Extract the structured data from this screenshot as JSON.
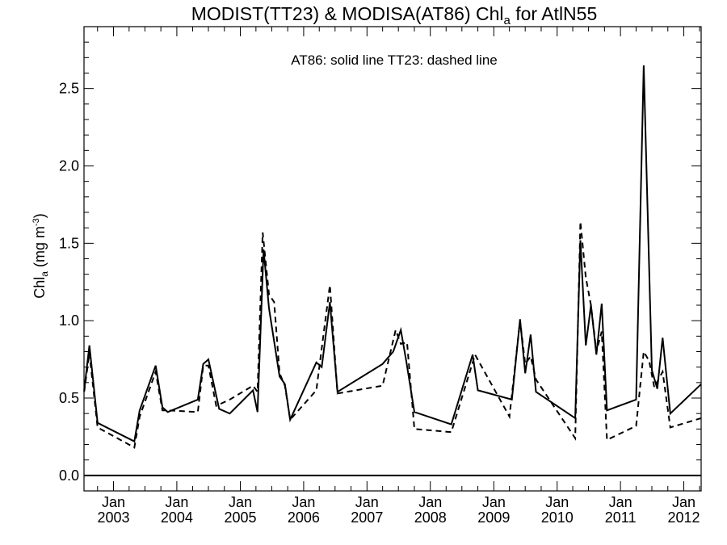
{
  "chart_data": {
    "type": "line",
    "title": "MODIST(TT23) & MODISA(AT86)  Chl",
    "title_sub": "a",
    "title_suffix": " for AtlN55",
    "ylabel": "Chl",
    "ylabel_sub": "a",
    "ylabel_units": " (mg m",
    "ylabel_sup": "-3",
    "ylabel_close": ")",
    "annotation": "AT86: solid line   TT23: dashed line",
    "xlim": [
      "2002-07-15",
      "2012-04-10"
    ],
    "ylim": [
      -0.1,
      2.9
    ],
    "y_ticks": [
      0.0,
      0.5,
      1.0,
      1.5,
      2.0,
      2.5
    ],
    "y_tick_labels": [
      "0.0",
      "0.5",
      "1.0",
      "1.5",
      "2.0",
      "2.5"
    ],
    "x_ticks": [
      "2003-01-01",
      "2004-01-01",
      "2005-01-01",
      "2006-01-01",
      "2007-01-01",
      "2008-01-01",
      "2009-01-01",
      "2010-01-01",
      "2011-01-01",
      "2012-01-01"
    ],
    "x_tick_month_label": "Jan",
    "x_tick_year_labels": [
      "2003",
      "2004",
      "2005",
      "2006",
      "2007",
      "2008",
      "2009",
      "2010",
      "2011",
      "2012"
    ],
    "zero_line": 0.0,
    "series": [
      {
        "name": "AT86",
        "style": "solid",
        "points": [
          [
            "2002-07-16",
            0.55
          ],
          [
            "2002-08-15",
            0.84
          ],
          [
            "2002-10-01",
            0.34
          ],
          [
            "2003-05-01",
            0.22
          ],
          [
            "2003-06-01",
            0.42
          ],
          [
            "2003-09-01",
            0.71
          ],
          [
            "2003-10-10",
            0.44
          ],
          [
            "2003-11-10",
            0.41
          ],
          [
            "2004-05-01",
            0.49
          ],
          [
            "2004-06-01",
            0.72
          ],
          [
            "2004-07-01",
            0.75
          ],
          [
            "2004-09-01",
            0.43
          ],
          [
            "2004-11-01",
            0.4
          ],
          [
            "2005-03-15",
            0.55
          ],
          [
            "2005-04-10",
            0.41
          ],
          [
            "2005-05-15",
            1.46
          ],
          [
            "2005-06-15",
            1.08
          ],
          [
            "2005-08-15",
            0.64
          ],
          [
            "2005-09-15",
            0.59
          ],
          [
            "2005-10-15",
            0.36
          ],
          [
            "2006-03-15",
            0.73
          ],
          [
            "2006-04-15",
            0.7
          ],
          [
            "2006-06-01",
            1.12
          ],
          [
            "2006-07-15",
            0.54
          ],
          [
            "2007-04-01",
            0.72
          ],
          [
            "2007-06-01",
            0.8
          ],
          [
            "2007-07-15",
            0.94
          ],
          [
            "2007-08-15",
            0.74
          ],
          [
            "2007-10-01",
            0.41
          ],
          [
            "2008-05-01",
            0.33
          ],
          [
            "2008-09-01",
            0.78
          ],
          [
            "2008-10-01",
            0.55
          ],
          [
            "2009-04-15",
            0.49
          ],
          [
            "2009-06-01",
            1.01
          ],
          [
            "2009-07-01",
            0.66
          ],
          [
            "2009-08-01",
            0.91
          ],
          [
            "2009-09-01",
            0.54
          ],
          [
            "2010-04-15",
            0.37
          ],
          [
            "2010-05-15",
            1.52
          ],
          [
            "2010-06-15",
            0.84
          ],
          [
            "2010-07-15",
            1.1
          ],
          [
            "2010-08-15",
            0.78
          ],
          [
            "2010-09-15",
            1.11
          ],
          [
            "2010-10-15",
            0.42
          ],
          [
            "2011-04-01",
            0.49
          ],
          [
            "2011-05-15",
            2.65
          ],
          [
            "2011-07-01",
            0.68
          ],
          [
            "2011-08-01",
            0.56
          ],
          [
            "2011-09-01",
            0.89
          ],
          [
            "2011-10-15",
            0.4
          ],
          [
            "2012-04-10",
            0.59
          ]
        ]
      },
      {
        "name": "TT23",
        "style": "dashed",
        "points": [
          [
            "2002-07-16",
            0.54
          ],
          [
            "2002-08-15",
            0.79
          ],
          [
            "2002-10-01",
            0.31
          ],
          [
            "2003-05-01",
            0.18
          ],
          [
            "2003-06-01",
            0.38
          ],
          [
            "2003-09-01",
            0.67
          ],
          [
            "2003-10-10",
            0.42
          ],
          [
            "2003-11-10",
            0.42
          ],
          [
            "2004-05-01",
            0.41
          ],
          [
            "2004-06-01",
            0.71
          ],
          [
            "2004-07-01",
            0.71
          ],
          [
            "2004-08-15",
            0.45
          ],
          [
            "2004-11-01",
            0.49
          ],
          [
            "2005-03-15",
            0.58
          ],
          [
            "2005-04-10",
            0.54
          ],
          [
            "2005-05-10",
            1.57
          ],
          [
            "2005-06-15",
            1.17
          ],
          [
            "2005-07-15",
            1.12
          ],
          [
            "2005-08-15",
            0.66
          ],
          [
            "2005-09-15",
            0.58
          ],
          [
            "2005-10-15",
            0.36
          ],
          [
            "2006-03-15",
            0.55
          ],
          [
            "2006-06-01",
            1.23
          ],
          [
            "2006-07-15",
            0.53
          ],
          [
            "2007-04-01",
            0.58
          ],
          [
            "2007-06-15",
            0.94
          ],
          [
            "2007-07-15",
            0.85
          ],
          [
            "2007-08-20",
            0.86
          ],
          [
            "2007-10-01",
            0.3
          ],
          [
            "2008-05-01",
            0.28
          ],
          [
            "2008-09-15",
            0.78
          ],
          [
            "2009-04-01",
            0.38
          ],
          [
            "2009-06-01",
            1.0
          ],
          [
            "2009-07-01",
            0.72
          ],
          [
            "2009-08-01",
            0.77
          ],
          [
            "2009-09-01",
            0.62
          ],
          [
            "2010-04-15",
            0.24
          ],
          [
            "2010-05-15",
            1.64
          ],
          [
            "2010-06-15",
            1.28
          ],
          [
            "2010-07-15",
            1.1
          ],
          [
            "2010-08-15",
            0.8
          ],
          [
            "2010-09-15",
            0.93
          ],
          [
            "2010-10-15",
            0.23
          ],
          [
            "2011-04-01",
            0.32
          ],
          [
            "2011-05-15",
            0.8
          ],
          [
            "2011-06-15",
            0.74
          ],
          [
            "2011-07-15",
            0.57
          ],
          [
            "2011-09-01",
            0.67
          ],
          [
            "2011-10-15",
            0.31
          ],
          [
            "2012-04-10",
            0.37
          ]
        ]
      }
    ]
  }
}
